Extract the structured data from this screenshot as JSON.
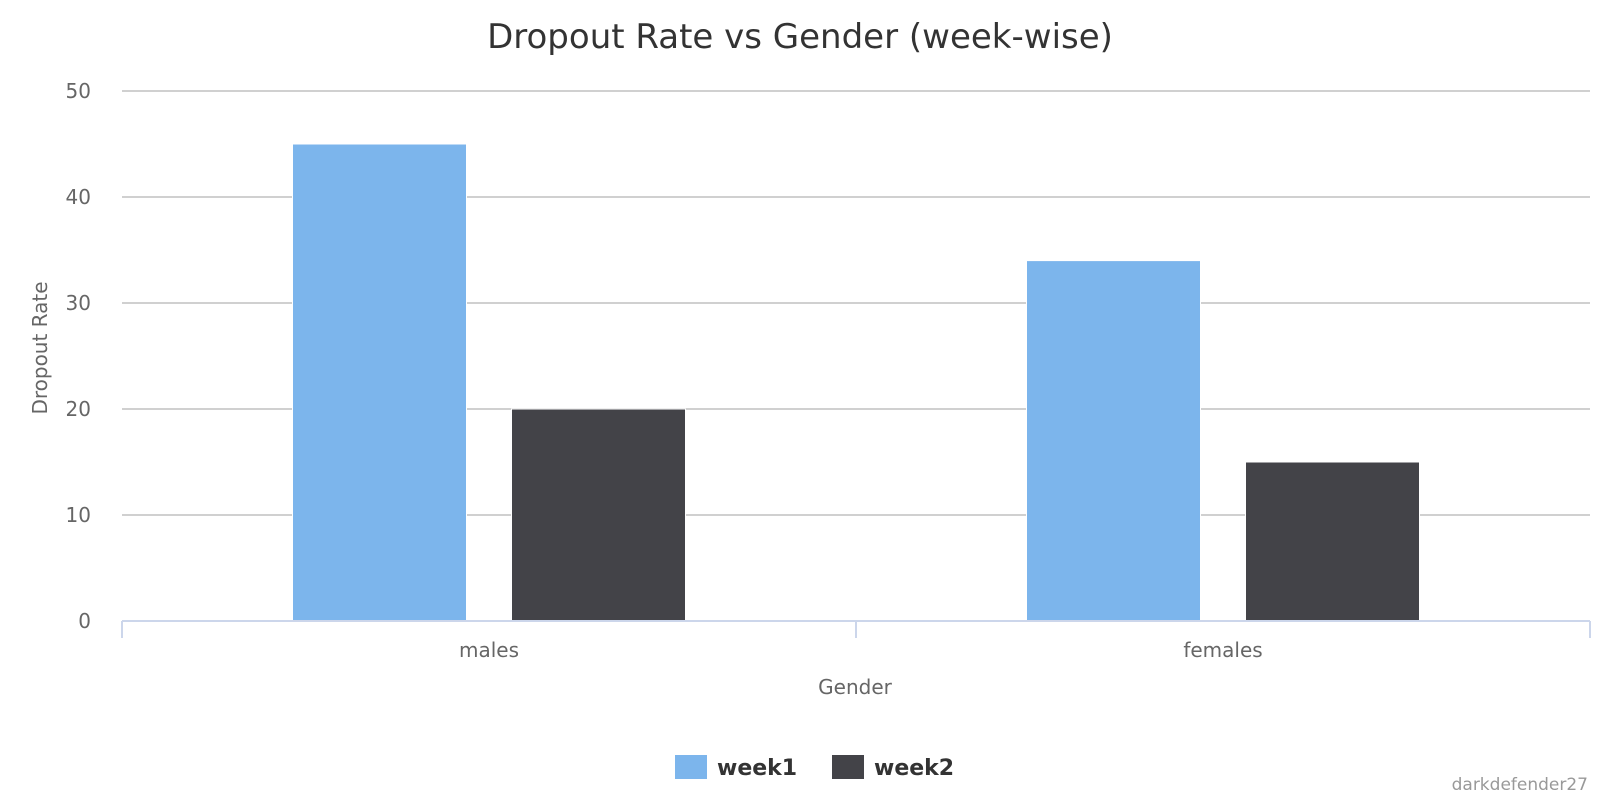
{
  "chart_data": {
    "type": "bar",
    "title": "Dropout Rate vs Gender (week-wise)",
    "xlabel": "Gender",
    "ylabel": "Dropout Rate",
    "categories": [
      "males",
      "females"
    ],
    "series": [
      {
        "name": "week1",
        "values": [
          45,
          34
        ],
        "color": "#7cb5ec"
      },
      {
        "name": "week2",
        "values": [
          20,
          15
        ],
        "color": "#434348"
      }
    ],
    "ylim": [
      0,
      50
    ],
    "yticks": [
      0,
      10,
      20,
      30,
      40,
      50
    ],
    "grid": true,
    "legend_position": "bottom-center"
  },
  "credit": "darkdefender27",
  "colors": {
    "title": "#333333",
    "axis_text": "#666666",
    "grid": "#c0c0c0",
    "axis_line": "#ccd6eb"
  }
}
